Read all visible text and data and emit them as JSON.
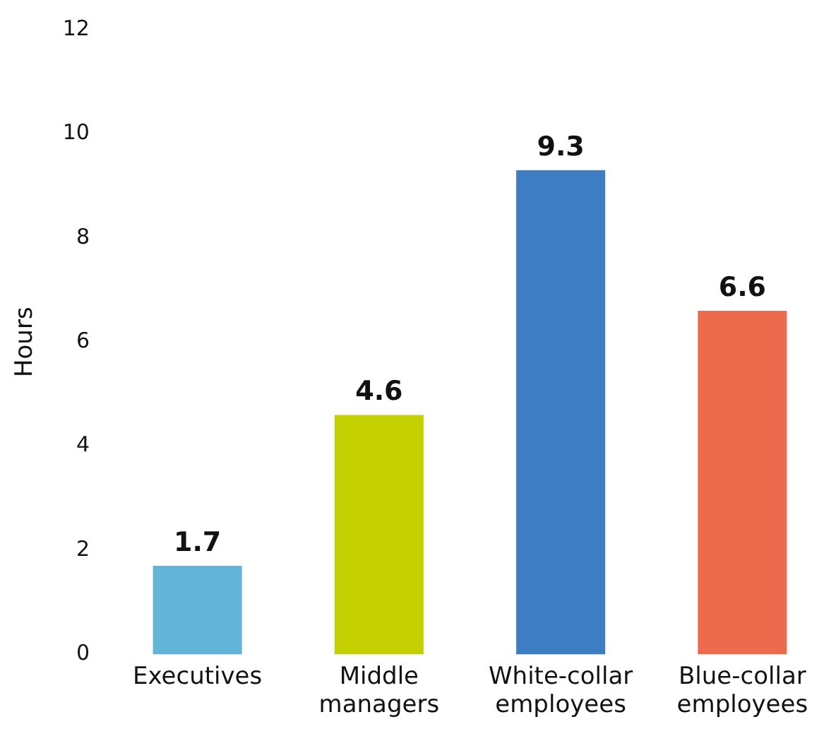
{
  "chart_data": {
    "type": "bar",
    "ylabel": "Hours",
    "categories": [
      "Executives",
      "Middle managers",
      "White-collar employees",
      "Blue-collar employees"
    ],
    "values": [
      1.7,
      4.6,
      9.3,
      6.6
    ],
    "colors": [
      "#62b5d9",
      "#c4cf00",
      "#3d7dc4",
      "#ec6b4c"
    ],
    "ylim": [
      0,
      12
    ],
    "yticks": [
      0,
      2,
      4,
      6,
      8,
      10,
      12
    ],
    "grid": false,
    "legend": false,
    "data_labels": true
  }
}
